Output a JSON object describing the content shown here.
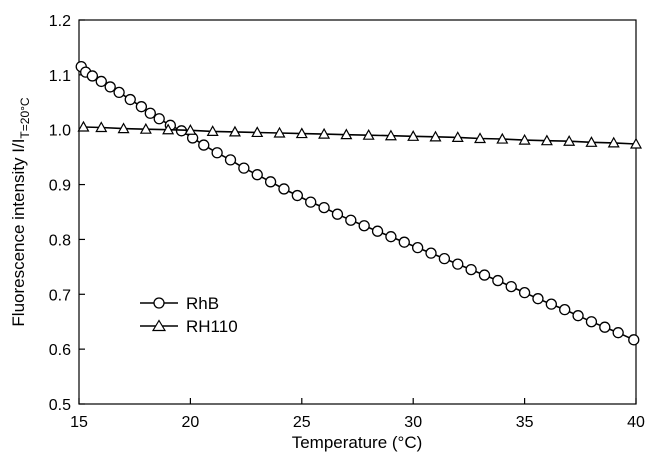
{
  "chart_data": {
    "type": "line",
    "xlabel": "Temperature (°C)",
    "ylabel": {
      "main": "Fluorescence intensity I/I",
      "subscript": "T=20°C"
    },
    "xlim": [
      15,
      40
    ],
    "ylim": [
      0.5,
      1.2
    ],
    "x_ticks": [
      "15",
      "20",
      "25",
      "30",
      "35",
      "40"
    ],
    "y_ticks": [
      "0.5",
      "0.6",
      "0.7",
      "0.8",
      "0.9",
      "1.0",
      "1.1",
      "1.2"
    ],
    "grid": false,
    "legend_position": "lower-left",
    "series": [
      {
        "name": "RhB",
        "marker": "circle",
        "color": "#000000",
        "x": [
          15.1,
          15.3,
          15.6,
          16.0,
          16.4,
          16.8,
          17.3,
          17.8,
          18.2,
          18.6,
          19.1,
          19.6,
          20.1,
          20.6,
          21.2,
          21.8,
          22.4,
          23.0,
          23.6,
          24.2,
          24.8,
          25.4,
          26.0,
          26.6,
          27.2,
          27.8,
          28.4,
          29.0,
          29.6,
          30.2,
          30.8,
          31.4,
          32.0,
          32.6,
          33.2,
          33.8,
          34.4,
          35.0,
          35.6,
          36.2,
          36.8,
          37.4,
          38.0,
          38.6,
          39.2,
          39.9
        ],
        "y": [
          1.115,
          1.105,
          1.098,
          1.088,
          1.078,
          1.068,
          1.055,
          1.042,
          1.03,
          1.02,
          1.008,
          0.998,
          0.985,
          0.972,
          0.958,
          0.945,
          0.93,
          0.918,
          0.905,
          0.892,
          0.88,
          0.868,
          0.858,
          0.846,
          0.835,
          0.825,
          0.815,
          0.805,
          0.795,
          0.785,
          0.775,
          0.765,
          0.755,
          0.745,
          0.735,
          0.725,
          0.714,
          0.703,
          0.692,
          0.682,
          0.672,
          0.661,
          0.65,
          0.64,
          0.63,
          0.617
        ]
      },
      {
        "name": "RH110",
        "marker": "triangle",
        "color": "#000000",
        "x": [
          15.2,
          16.0,
          17.0,
          18.0,
          19.0,
          20.0,
          21.0,
          22.0,
          23.0,
          24.0,
          25.0,
          26.0,
          27.0,
          28.0,
          29.0,
          30.0,
          31.0,
          32.0,
          33.0,
          34.0,
          35.0,
          36.0,
          37.0,
          38.0,
          39.0,
          40.0
        ],
        "y": [
          1.005,
          1.004,
          1.002,
          1.001,
          1.0,
          0.999,
          0.997,
          0.996,
          0.995,
          0.994,
          0.993,
          0.992,
          0.991,
          0.99,
          0.989,
          0.988,
          0.987,
          0.986,
          0.984,
          0.983,
          0.981,
          0.98,
          0.979,
          0.977,
          0.976,
          0.974
        ]
      }
    ]
  }
}
